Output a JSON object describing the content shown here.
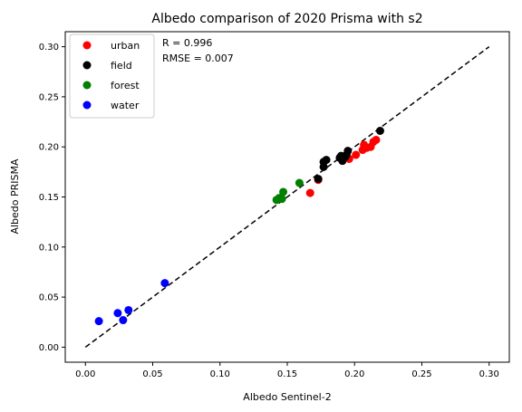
{
  "chart_data": {
    "type": "scatter",
    "title": "Albedo comparison of 2020 Prisma with s2",
    "xlabel": "Albedo Sentinel-2",
    "ylabel": "Albedo PRISMA",
    "xlim": [
      -0.015,
      0.315
    ],
    "ylim": [
      -0.015,
      0.315
    ],
    "xticks": [
      "0.00",
      "0.05",
      "0.10",
      "0.15",
      "0.20",
      "0.25",
      "0.30"
    ],
    "yticks": [
      "0.00",
      "0.05",
      "0.10",
      "0.15",
      "0.20",
      "0.25",
      "0.30"
    ],
    "legend_position": "top-left",
    "annotations": [
      "R = 0.996",
      "RMSE = 0.007"
    ],
    "reference_line": {
      "style": "dashed",
      "color": "#000000",
      "from": [
        0.0,
        0.0
      ],
      "to": [
        0.3,
        0.3
      ]
    },
    "series": [
      {
        "name": "urban",
        "color": "#ff0000",
        "points": [
          [
            0.167,
            0.154
          ],
          [
            0.173,
            0.167
          ],
          [
            0.196,
            0.188
          ],
          [
            0.201,
            0.192
          ],
          [
            0.206,
            0.197
          ],
          [
            0.207,
            0.202
          ],
          [
            0.209,
            0.199
          ],
          [
            0.212,
            0.2
          ],
          [
            0.214,
            0.205
          ],
          [
            0.216,
            0.207
          ]
        ]
      },
      {
        "name": "field",
        "color": "#000000",
        "points": [
          [
            0.173,
            0.168
          ],
          [
            0.177,
            0.18
          ],
          [
            0.177,
            0.185
          ],
          [
            0.179,
            0.187
          ],
          [
            0.189,
            0.189
          ],
          [
            0.19,
            0.191
          ],
          [
            0.191,
            0.186
          ],
          [
            0.193,
            0.19
          ],
          [
            0.194,
            0.192
          ],
          [
            0.195,
            0.196
          ],
          [
            0.219,
            0.216
          ]
        ]
      },
      {
        "name": "forest",
        "color": "#008000",
        "points": [
          [
            0.142,
            0.147
          ],
          [
            0.144,
            0.149
          ],
          [
            0.146,
            0.148
          ],
          [
            0.147,
            0.155
          ],
          [
            0.159,
            0.164
          ]
        ]
      },
      {
        "name": "water",
        "color": "#0000ff",
        "points": [
          [
            0.01,
            0.026
          ],
          [
            0.024,
            0.034
          ],
          [
            0.028,
            0.027
          ],
          [
            0.032,
            0.037
          ],
          [
            0.059,
            0.064
          ]
        ]
      }
    ]
  }
}
